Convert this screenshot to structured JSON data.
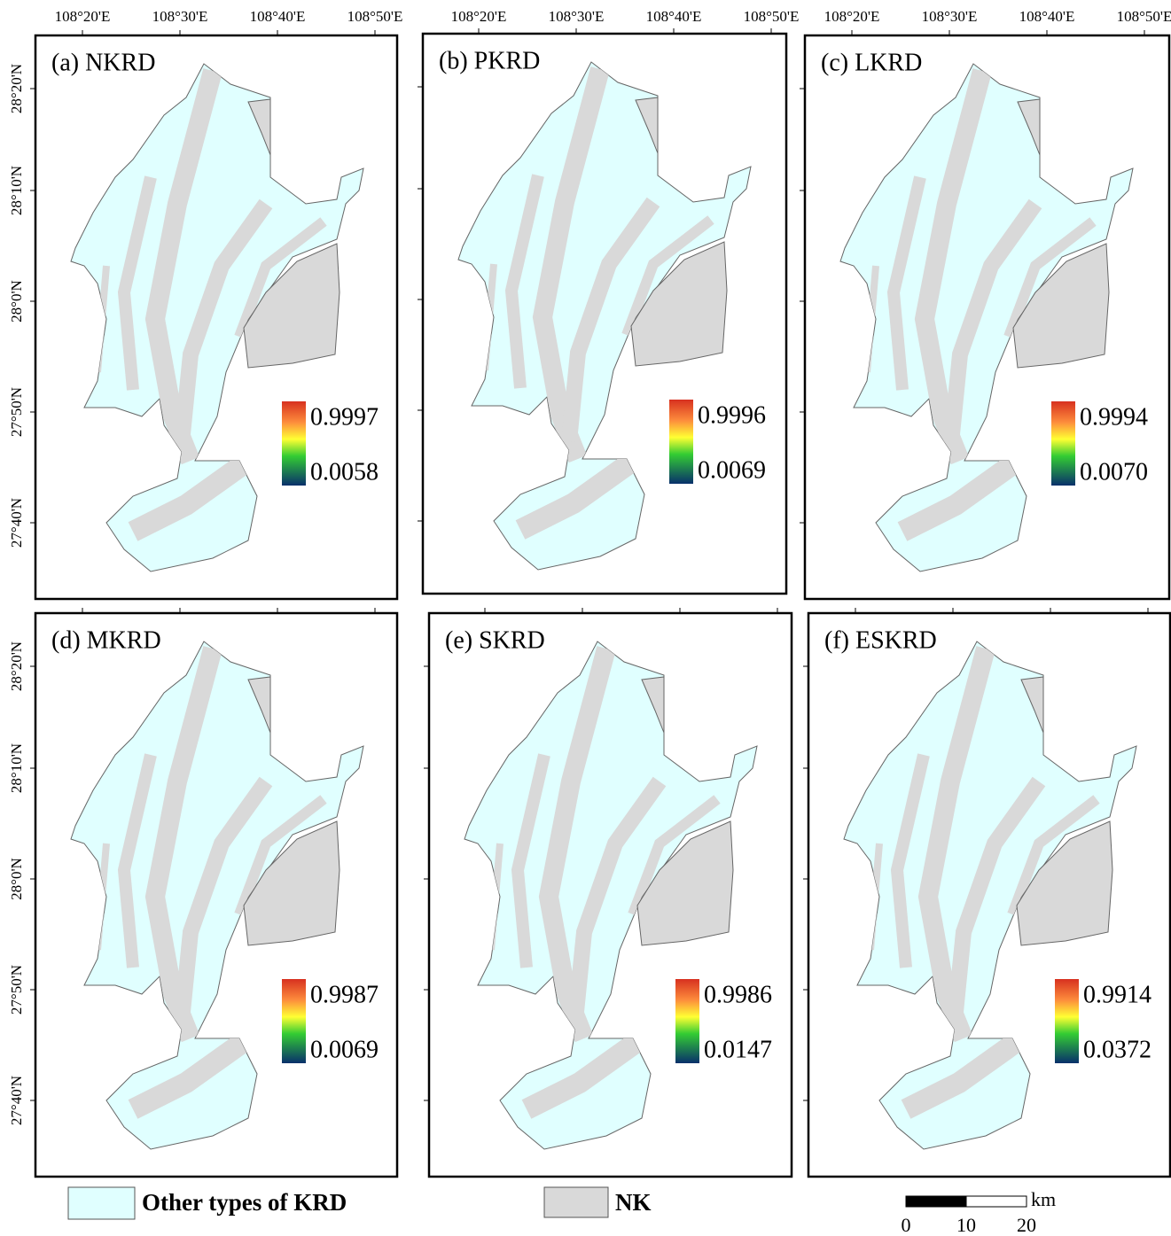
{
  "panels": [
    {
      "label": "(a) NKRD",
      "max": "0.9997",
      "min": "0.0058"
    },
    {
      "label": "(b) PKRD",
      "max": "0.9996",
      "min": "0.0069"
    },
    {
      "label": "(c) LKRD",
      "max": "0.9994",
      "min": "0.0070"
    },
    {
      "label": "(d) MKRD",
      "max": "0.9987",
      "min": "0.0069"
    },
    {
      "label": "(e) SKRD",
      "max": "0.9986",
      "min": "0.0147"
    },
    {
      "label": "(f) ESKRD",
      "max": "0.9914",
      "min": "0.0372"
    }
  ],
  "longitude_ticks": [
    "108°20'E",
    "108°30'E",
    "108°40'E",
    "108°50'E"
  ],
  "latitude_ticks": [
    "28°20'N",
    "28°10'N",
    "28°0'N",
    "27°50'N",
    "27°40'N"
  ],
  "legend": {
    "items": [
      "Other types of KRD",
      "NK"
    ]
  },
  "scale_bar": {
    "unit": "km",
    "ticks": [
      "0",
      "10",
      "20"
    ]
  }
}
